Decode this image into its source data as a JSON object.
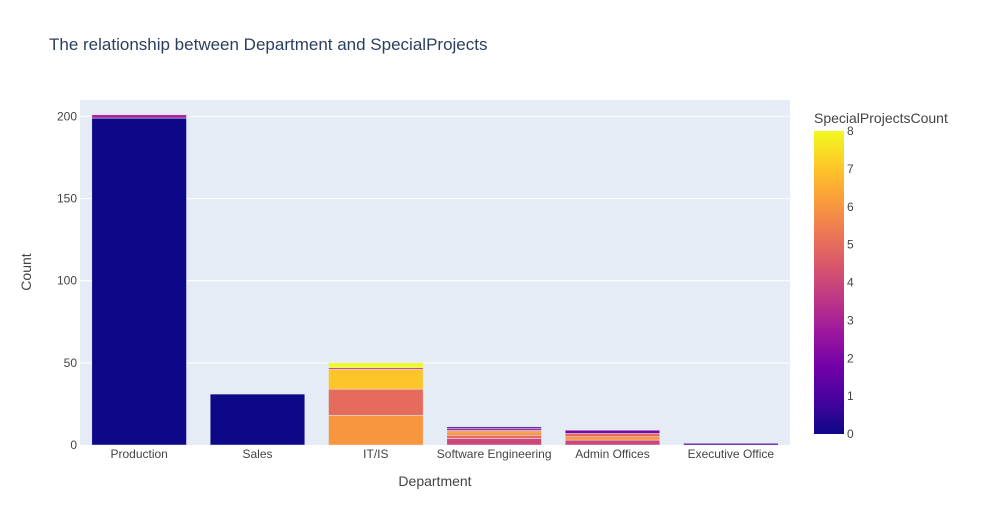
{
  "chart_data": {
    "type": "bar",
    "barmode": "stack",
    "title": "The relationship between Department and SpecialProjects",
    "xlabel": "Department",
    "ylabel": "Count",
    "ylim": [
      0,
      210
    ],
    "yticks": [
      0,
      50,
      100,
      150,
      200
    ],
    "grid": true,
    "categories": [
      "Production",
      "Sales",
      "IT/IS",
      "Software Engineering",
      "Admin Offices",
      "Executive Office"
    ],
    "colorbar": {
      "title": "SpecialProjectsCount",
      "min": 0,
      "max": 8,
      "ticks": [
        0,
        1,
        2,
        3,
        4,
        5,
        6,
        7,
        8
      ],
      "colorscale": [
        "#0d0887",
        "#46039f",
        "#7201a8",
        "#9c179e",
        "#bd3786",
        "#d8576b",
        "#ed7953",
        "#fb9f3a",
        "#fdca26",
        "#f0f921"
      ]
    },
    "segments": [
      {
        "category": "Production",
        "special_projects_count": 0,
        "value": 199
      },
      {
        "category": "Production",
        "special_projects_count": 3,
        "value": 2
      },
      {
        "category": "Sales",
        "special_projects_count": 0,
        "value": 31
      },
      {
        "category": "IT/IS",
        "special_projects_count": 6,
        "value": 18
      },
      {
        "category": "IT/IS",
        "special_projects_count": 5,
        "value": 16
      },
      {
        "category": "IT/IS",
        "special_projects_count": 7,
        "value": 12
      },
      {
        "category": "IT/IS",
        "special_projects_count": 4,
        "value": 1
      },
      {
        "category": "IT/IS",
        "special_projects_count": 8,
        "value": 3
      },
      {
        "category": "Software Engineering",
        "special_projects_count": 4,
        "value": 4
      },
      {
        "category": "Software Engineering",
        "special_projects_count": 5,
        "value": 2
      },
      {
        "category": "Software Engineering",
        "special_projects_count": 6,
        "value": 2
      },
      {
        "category": "Software Engineering",
        "special_projects_count": 5,
        "value": 1
      },
      {
        "category": "Software Engineering",
        "special_projects_count": 3,
        "value": 1
      },
      {
        "category": "Software Engineering",
        "special_projects_count": 1,
        "value": 1
      },
      {
        "category": "Admin Offices",
        "special_projects_count": 4,
        "value": 3
      },
      {
        "category": "Admin Offices",
        "special_projects_count": 6,
        "value": 2
      },
      {
        "category": "Admin Offices",
        "special_projects_count": 5,
        "value": 2
      },
      {
        "category": "Admin Offices",
        "special_projects_count": 2,
        "value": 2
      },
      {
        "category": "Executive Office",
        "special_projects_count": 1,
        "value": 1
      }
    ]
  }
}
